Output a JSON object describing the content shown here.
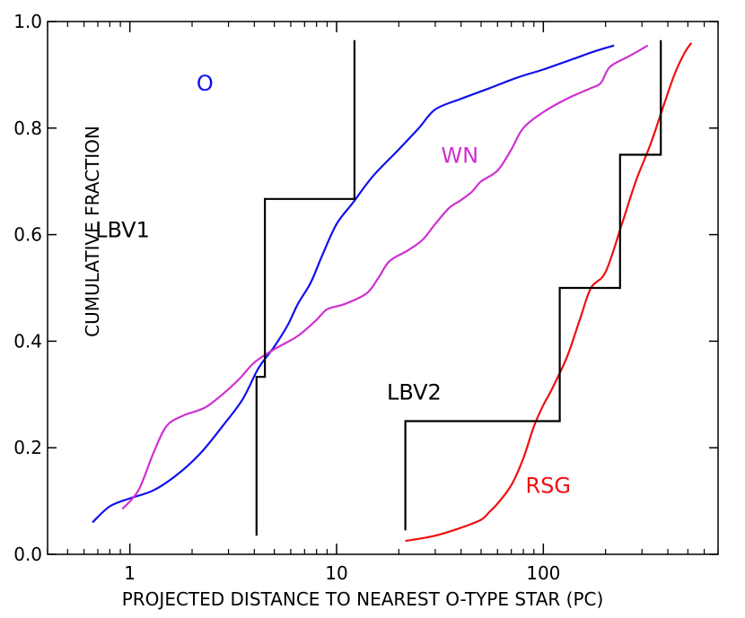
{
  "chart_data": {
    "type": "line",
    "xscale": "log",
    "xlim": [
      0.4,
      700
    ],
    "ylim": [
      0,
      1
    ],
    "xlabel": "PROJECTED  DISTANCE  TO  NEAREST  O-TYPE  STAR  (PC)",
    "ylabel": "CUMULATIVE  FRACTION",
    "xticks": [
      {
        "value": 1,
        "label": "1"
      },
      {
        "value": 10,
        "label": "10"
      },
      {
        "value": 100,
        "label": "100"
      }
    ],
    "yticks": [
      {
        "value": 0.0,
        "label": "0.0"
      },
      {
        "value": 0.2,
        "label": "0.2"
      },
      {
        "value": 0.4,
        "label": "0.4"
      },
      {
        "value": 0.6,
        "label": "0.6"
      },
      {
        "value": 0.8,
        "label": "0.8"
      },
      {
        "value": 1.0,
        "label": "1.0"
      }
    ],
    "series": [
      {
        "name": "O",
        "label": "O",
        "color": "#1010ee",
        "style": "smooth",
        "label_at": [
          2.1,
          0.87
        ],
        "points": [
          [
            0.66,
            0.06
          ],
          [
            0.8,
            0.09
          ],
          [
            1.0,
            0.105
          ],
          [
            1.3,
            0.12
          ],
          [
            1.7,
            0.15
          ],
          [
            2.2,
            0.19
          ],
          [
            2.8,
            0.24
          ],
          [
            3.5,
            0.29
          ],
          [
            4.2,
            0.35
          ],
          [
            5.0,
            0.39
          ],
          [
            5.8,
            0.43
          ],
          [
            6.5,
            0.47
          ],
          [
            7.5,
            0.51
          ],
          [
            8.5,
            0.56
          ],
          [
            10.0,
            0.62
          ],
          [
            12.0,
            0.66
          ],
          [
            15.0,
            0.71
          ],
          [
            20.0,
            0.76
          ],
          [
            25.0,
            0.8
          ],
          [
            30.0,
            0.835
          ],
          [
            40.0,
            0.855
          ],
          [
            55.0,
            0.875
          ],
          [
            75.0,
            0.895
          ],
          [
            100.0,
            0.91
          ],
          [
            140.0,
            0.93
          ],
          [
            180.0,
            0.945
          ],
          [
            220.0,
            0.955
          ]
        ]
      },
      {
        "name": "WN",
        "label": "WN",
        "color": "#d030d0",
        "style": "smooth",
        "label_at": [
          32,
          0.735
        ],
        "points": [
          [
            0.92,
            0.085
          ],
          [
            1.1,
            0.12
          ],
          [
            1.3,
            0.19
          ],
          [
            1.5,
            0.24
          ],
          [
            1.8,
            0.26
          ],
          [
            2.3,
            0.275
          ],
          [
            2.8,
            0.3
          ],
          [
            3.4,
            0.33
          ],
          [
            4.0,
            0.36
          ],
          [
            5.0,
            0.385
          ],
          [
            6.5,
            0.41
          ],
          [
            8.0,
            0.44
          ],
          [
            9.0,
            0.46
          ],
          [
            11.0,
            0.47
          ],
          [
            14.0,
            0.49
          ],
          [
            16.0,
            0.52
          ],
          [
            18.0,
            0.55
          ],
          [
            22.0,
            0.57
          ],
          [
            26.0,
            0.59
          ],
          [
            30.0,
            0.62
          ],
          [
            35.0,
            0.65
          ],
          [
            40.0,
            0.665
          ],
          [
            45.0,
            0.68
          ],
          [
            50.0,
            0.7
          ],
          [
            60.0,
            0.72
          ],
          [
            70.0,
            0.76
          ],
          [
            80.0,
            0.8
          ],
          [
            100.0,
            0.83
          ],
          [
            130.0,
            0.855
          ],
          [
            170.0,
            0.875
          ],
          [
            190.0,
            0.885
          ],
          [
            210.0,
            0.915
          ],
          [
            260.0,
            0.935
          ],
          [
            320.0,
            0.955
          ]
        ]
      },
      {
        "name": "RSG",
        "label": "RSG",
        "color": "#ee1010",
        "style": "smooth",
        "label_at": [
          82,
          0.115
        ],
        "points": [
          [
            21.5,
            0.025
          ],
          [
            30.0,
            0.035
          ],
          [
            40.0,
            0.05
          ],
          [
            50.0,
            0.065
          ],
          [
            55.0,
            0.08
          ],
          [
            60.0,
            0.095
          ],
          [
            70.0,
            0.13
          ],
          [
            80.0,
            0.18
          ],
          [
            90.0,
            0.24
          ],
          [
            100.0,
            0.28
          ],
          [
            110.0,
            0.31
          ],
          [
            130.0,
            0.37
          ],
          [
            150.0,
            0.44
          ],
          [
            170.0,
            0.5
          ],
          [
            200.0,
            0.53
          ],
          [
            240.0,
            0.62
          ],
          [
            280.0,
            0.7
          ],
          [
            330.0,
            0.77
          ],
          [
            380.0,
            0.84
          ],
          [
            430.0,
            0.9
          ],
          [
            480.0,
            0.94
          ],
          [
            520.0,
            0.96
          ]
        ]
      },
      {
        "name": "LBV1",
        "label": "LBV1",
        "color": "#000000",
        "style": "step",
        "label_at": [
          0.68,
          0.595
        ],
        "points": [
          [
            4.1,
            0.035
          ],
          [
            4.1,
            0.333
          ],
          [
            4.5,
            0.333
          ],
          [
            4.5,
            0.667
          ],
          [
            12.2,
            0.667
          ],
          [
            12.2,
            0.965
          ]
        ]
      },
      {
        "name": "LBV2",
        "label": "LBV2",
        "color": "#000000",
        "style": "step",
        "label_at": [
          17.5,
          0.29
        ],
        "points": [
          [
            21.5,
            0.045
          ],
          [
            21.5,
            0.25
          ],
          [
            120.0,
            0.25
          ],
          [
            120.0,
            0.5
          ],
          [
            235.0,
            0.5
          ],
          [
            235.0,
            0.75
          ],
          [
            370.0,
            0.75
          ],
          [
            370.0,
            0.965
          ]
        ]
      }
    ]
  }
}
